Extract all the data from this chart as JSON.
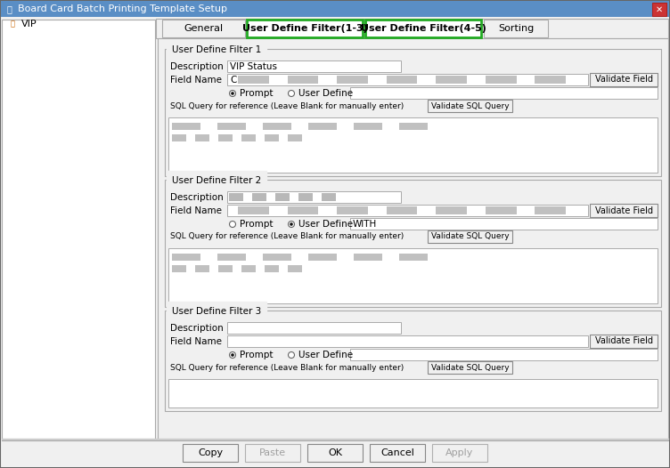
{
  "title": "Board Card Batch Printing Template Setup",
  "bg_color": "#f0f0f0",
  "titlebar_bg": "#c8d8ea",
  "tabs": [
    "General",
    "User Define Filter(1-3)",
    "User Define Filter(4-5)",
    "Sorting"
  ],
  "active_tabs": [
    1,
    2
  ],
  "active_tab_border": "#22aa22",
  "tree_item": "VIP",
  "filters": [
    {
      "title": "User Define Filter 1",
      "description": "VIP Status",
      "desc_blurred": false,
      "field_name_blurred": true,
      "field_text": "C",
      "radio_prompt": true,
      "radio_userdefine": false,
      "userdefine_text": "",
      "has_sql_content": true,
      "sql_blurred": true
    },
    {
      "title": "User Define Filter 2",
      "description": "",
      "desc_blurred": true,
      "field_name_blurred": true,
      "field_text": "",
      "radio_prompt": false,
      "radio_userdefine": true,
      "userdefine_text": "WITH",
      "has_sql_content": true,
      "sql_blurred": true
    },
    {
      "title": "User Define Filter 3",
      "description": "",
      "desc_blurred": false,
      "field_name_blurred": false,
      "field_text": "",
      "radio_prompt": true,
      "radio_userdefine": false,
      "userdefine_text": "",
      "has_sql_content": false,
      "sql_blurred": false
    }
  ],
  "buttons": [
    "Copy",
    "Paste",
    "OK",
    "Cancel",
    "Apply"
  ],
  "buttons_disabled": [
    "Paste",
    "Apply"
  ]
}
